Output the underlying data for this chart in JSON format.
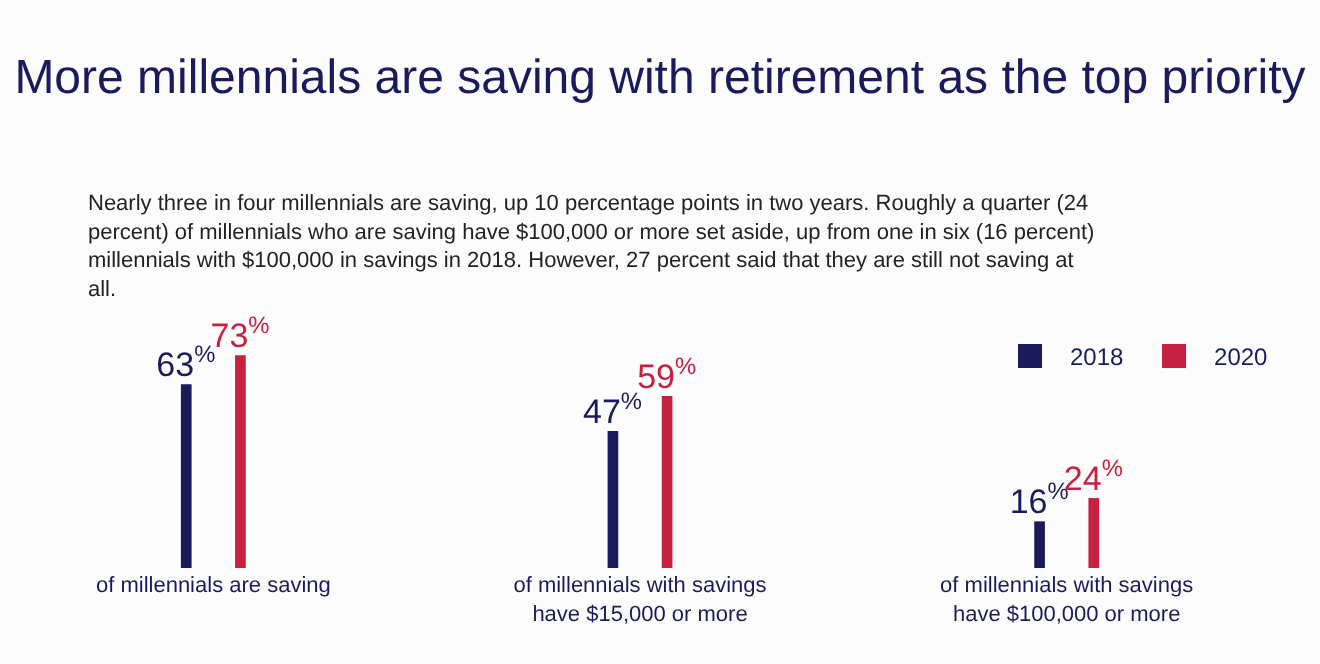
{
  "chart_data": {
    "type": "bar",
    "title": "More millennials are saving with retirement as the top priority",
    "subtitle": "Nearly three in four millennials are saving, up 10 percentage points in two years. Roughly a quarter (24 percent) of millennials who are saving have $100,000 or more set aside, up from one in six (16 percent) millennials with $100,000 in savings in 2018. However, 27 percent said that they are still not saving at all.",
    "categories": [
      "of millennials are saving",
      "of millennials with savings have $15,000 or more",
      "of millennials with savings have $100,000 or more"
    ],
    "series": [
      {
        "name": "2018",
        "color": "#1b1a5c",
        "values": [
          63,
          47,
          16
        ],
        "value_labels": [
          "63$^{%}$",
          "47$^{%}$",
          "16$^{%}$"
        ]
      },
      {
        "name": "2020",
        "color": "#c8203f",
        "values": [
          73,
          59,
          24
        ],
        "value_labels": [
          "73$^{%}$",
          "59$^{%}$",
          "24$^{%}$"
        ]
      }
    ],
    "legend": "top right"
  }
}
